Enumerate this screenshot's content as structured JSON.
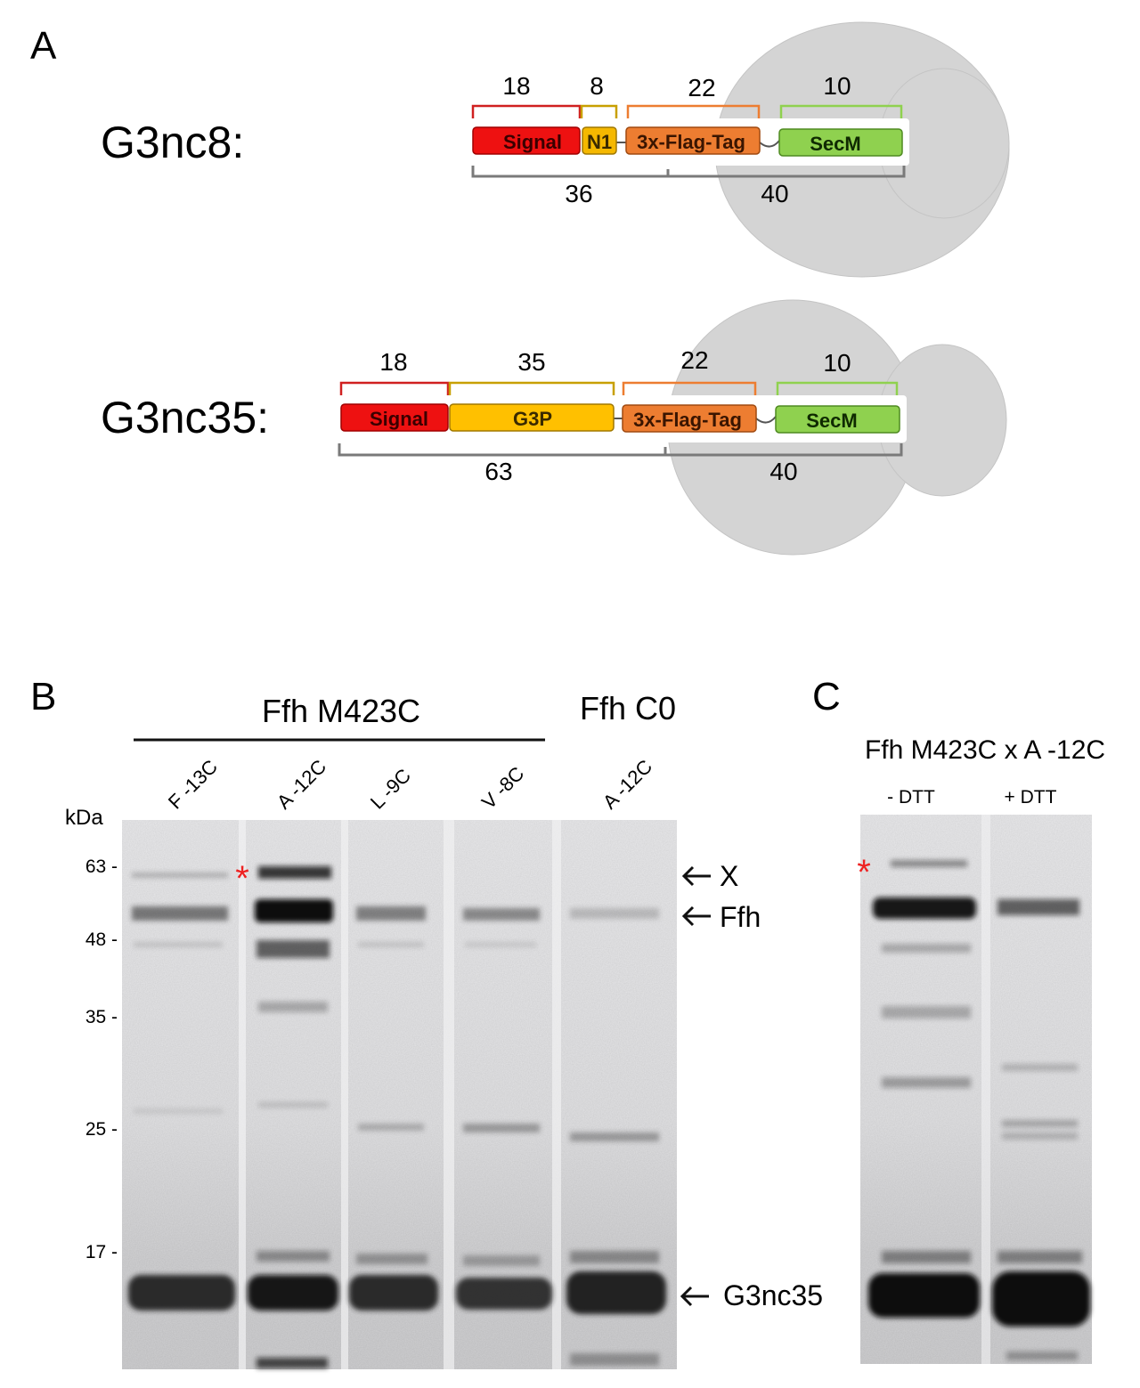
{
  "panelA": {
    "letter": "A",
    "constructs": [
      {
        "name": "G3nc8:",
        "segments": [
          "Signal",
          "N1",
          "3x-Flag-Tag",
          "SecM"
        ],
        "top_lengths": [
          "18",
          "8",
          "22",
          "10"
        ],
        "bottom_lengths": [
          "36",
          "40"
        ]
      },
      {
        "name": "G3nc35:",
        "segments": [
          "Signal",
          "G3P",
          "3x-Flag-Tag",
          "SecM"
        ],
        "top_lengths": [
          "18",
          "35",
          "22",
          "10"
        ],
        "bottom_lengths": [
          "63",
          "40"
        ]
      }
    ],
    "colors": {
      "signal": "#ee1111",
      "n1": "#f5b800",
      "g3p": "#ffc000",
      "flag": "#ed7d31",
      "secm": "#8fd14f",
      "ribosome": "#d4d4d4"
    }
  },
  "panelB": {
    "letter": "B",
    "group1_label": "Ffh M423C",
    "group2_label": "Ffh C0",
    "lanes": [
      "F -13C",
      "A -12C",
      "L -9C",
      "V -8C",
      "A -12C"
    ],
    "kda_label": "kDa",
    "markers": [
      "63 -",
      "48 -",
      "35 -",
      "25 -",
      "17 -"
    ],
    "arrows": [
      "X",
      "Ffh",
      "G3nc35"
    ],
    "asterisk": "*"
  },
  "panelC": {
    "letter": "C",
    "title": "Ffh M423C x A -12C",
    "lanes": [
      "- DTT",
      "+ DTT"
    ],
    "asterisk": "*"
  }
}
